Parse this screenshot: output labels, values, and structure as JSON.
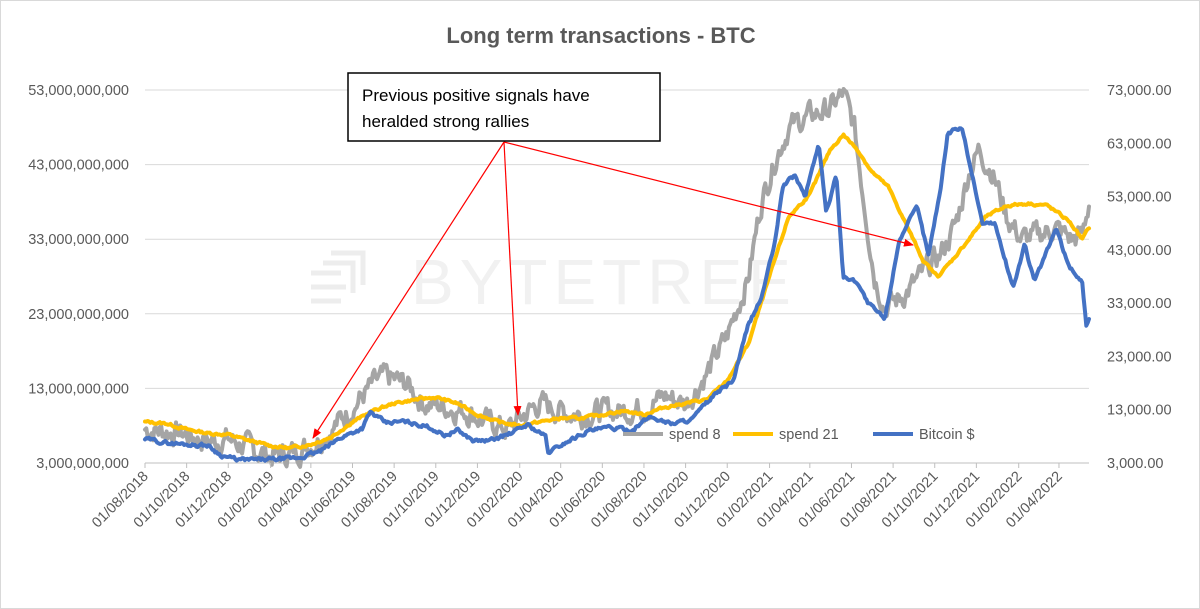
{
  "chart_data": {
    "type": "line",
    "title": "Long term transactions - BTC",
    "watermark": "BYTETREE",
    "annotation": "Previous positive signals have heralded strong rallies",
    "annotation_lines": [
      "Previous positive signals have",
      "heralded strong rallies"
    ],
    "x_tick_labels": [
      "01/08/2018",
      "01/10/2018",
      "01/12/2018",
      "01/02/2019",
      "01/04/2019",
      "01/06/2019",
      "01/08/2019",
      "01/10/2019",
      "01/12/2019",
      "01/02/2020",
      "01/04/2020",
      "01/06/2020",
      "01/08/2020",
      "01/10/2020",
      "01/12/2020",
      "01/02/2021",
      "01/04/2021",
      "01/06/2021",
      "01/08/2021",
      "01/10/2021",
      "01/12/2021",
      "01/02/2022",
      "01/04/2022"
    ],
    "x_range": [
      "2018-08-01",
      "2022-05-15"
    ],
    "y_left": {
      "ylim": [
        3000000000,
        53000000000
      ],
      "tick_labels": [
        "53,000,000,000",
        "43,000,000,000",
        "33,000,000,000",
        "23,000,000,000",
        "13,000,000,000",
        "3,000,000,000"
      ],
      "ticks": [
        53000000000,
        43000000000,
        33000000000,
        23000000000,
        13000000000,
        3000000000
      ]
    },
    "y_right": {
      "ylim": [
        3000,
        73000
      ],
      "tick_labels": [
        "73,000.00",
        "63,000.00",
        "53,000.00",
        "43,000.00",
        "33,000.00",
        "23,000.00",
        "13,000.00",
        "3,000.00"
      ],
      "ticks": [
        73000,
        63000,
        53000,
        43000,
        33000,
        23000,
        13000,
        3000
      ]
    },
    "grid": true,
    "legend_position": "lower-right inside plot",
    "series": [
      {
        "name": "spend 8",
        "axis": "left",
        "color": "#a5a5a5",
        "noise": 0.45,
        "points": [
          [
            "2018-08-01",
            7500000000.0
          ],
          [
            "2018-09-01",
            7300000000.0
          ],
          [
            "2018-10-01",
            6800000000.0
          ],
          [
            "2018-11-01",
            6000000000.0
          ],
          [
            "2018-12-01",
            6200000000.0
          ],
          [
            "2019-01-01",
            5000000000.0
          ],
          [
            "2019-02-01",
            4000000000.0
          ],
          [
            "2019-03-01",
            4200000000.0
          ],
          [
            "2019-04-01",
            5500000000.0
          ],
          [
            "2019-05-01",
            7500000000.0
          ],
          [
            "2019-06-01",
            10500000000.0
          ],
          [
            "2019-07-01",
            13500000000.0
          ],
          [
            "2019-07-20",
            14500000000.0
          ],
          [
            "2019-08-20",
            13500000000.0
          ],
          [
            "2019-09-15",
            11000000000.0
          ],
          [
            "2019-10-15",
            10500000000.0
          ],
          [
            "2019-11-15",
            10000000000.0
          ],
          [
            "2019-12-15",
            8500000000.0
          ],
          [
            "2020-01-15",
            7500000000.0
          ],
          [
            "2020-02-01",
            9000000000.0
          ],
          [
            "2020-03-01",
            11000000000.0
          ],
          [
            "2020-04-01",
            10000000000.0
          ],
          [
            "2020-05-01",
            9500000000.0
          ],
          [
            "2020-06-01",
            10000000000.0
          ],
          [
            "2020-07-01",
            10000000000.0
          ],
          [
            "2020-08-01",
            10500000000.0
          ],
          [
            "2020-09-01",
            12000000000.0
          ],
          [
            "2020-10-01",
            11000000000.0
          ],
          [
            "2020-11-01",
            15000000000.0
          ],
          [
            "2020-12-01",
            20000000000.0
          ],
          [
            "2021-01-01",
            28000000000.0
          ],
          [
            "2021-01-20",
            38000000000.0
          ],
          [
            "2021-02-10",
            44000000000.0
          ],
          [
            "2021-03-01",
            48000000000.0
          ],
          [
            "2021-04-01",
            49500000000.0
          ],
          [
            "2021-05-01",
            50500000000.0
          ],
          [
            "2021-05-20",
            52500000000.0
          ],
          [
            "2021-06-05",
            48000000000.0
          ],
          [
            "2021-06-20",
            38000000000.0
          ],
          [
            "2021-07-05",
            28000000000.0
          ],
          [
            "2021-07-20",
            24000000000.0
          ],
          [
            "2021-08-10",
            25000000000.0
          ],
          [
            "2021-09-01",
            27000000000.0
          ],
          [
            "2021-09-20",
            29000000000.0
          ],
          [
            "2021-10-10",
            31000000000.0
          ],
          [
            "2021-11-01",
            35000000000.0
          ],
          [
            "2021-11-20",
            42000000000.0
          ],
          [
            "2021-12-05",
            45000000000.0
          ],
          [
            "2021-12-25",
            42000000000.0
          ],
          [
            "2022-01-15",
            36000000000.0
          ],
          [
            "2022-02-05",
            33000000000.0
          ],
          [
            "2022-03-01",
            33500000000.0
          ],
          [
            "2022-03-25",
            34500000000.0
          ],
          [
            "2022-04-20",
            33000000000.0
          ],
          [
            "2022-05-05",
            33500000000.0
          ],
          [
            "2022-05-15",
            38000000000.0
          ]
        ]
      },
      {
        "name": "spend 21",
        "axis": "left",
        "color": "#ffc000",
        "noise": 0.05,
        "points": [
          [
            "2018-08-01",
            8500000000.0
          ],
          [
            "2018-09-01",
            8300000000.0
          ],
          [
            "2018-10-01",
            7500000000.0
          ],
          [
            "2018-11-01",
            7000000000.0
          ],
          [
            "2018-12-01",
            6800000000.0
          ],
          [
            "2019-01-01",
            6000000000.0
          ],
          [
            "2019-02-01",
            5300000000.0
          ],
          [
            "2019-03-01",
            5000000000.0
          ],
          [
            "2019-04-01",
            5500000000.0
          ],
          [
            "2019-05-01",
            6500000000.0
          ],
          [
            "2019-06-01",
            8500000000.0
          ],
          [
            "2019-07-01",
            10000000000.0
          ],
          [
            "2019-08-01",
            11000000000.0
          ],
          [
            "2019-09-01",
            11500000000.0
          ],
          [
            "2019-10-01",
            11800000000.0
          ],
          [
            "2019-11-01",
            11000000000.0
          ],
          [
            "2019-12-01",
            9500000000.0
          ],
          [
            "2020-01-01",
            8500000000.0
          ],
          [
            "2020-02-01",
            8000000000.0
          ],
          [
            "2020-03-01",
            8500000000.0
          ],
          [
            "2020-04-01",
            9000000000.0
          ],
          [
            "2020-05-01",
            9000000000.0
          ],
          [
            "2020-06-01",
            9500000000.0
          ],
          [
            "2020-07-01",
            10000000000.0
          ],
          [
            "2020-08-01",
            9500000000.0
          ],
          [
            "2020-09-01",
            10500000000.0
          ],
          [
            "2020-10-01",
            11000000000.0
          ],
          [
            "2020-11-01",
            11500000000.0
          ],
          [
            "2020-12-01",
            14000000000.0
          ],
          [
            "2021-01-01",
            19000000000.0
          ],
          [
            "2021-02-01",
            28000000000.0
          ],
          [
            "2021-03-01",
            36000000000.0
          ],
          [
            "2021-04-01",
            39000000000.0
          ],
          [
            "2021-05-01",
            45000000000.0
          ],
          [
            "2021-05-20",
            47000000000.0
          ],
          [
            "2021-06-10",
            45000000000.0
          ],
          [
            "2021-07-01",
            42000000000.0
          ],
          [
            "2021-07-25",
            40000000000.0
          ],
          [
            "2021-08-20",
            35000000000.0
          ],
          [
            "2021-09-15",
            30000000000.0
          ],
          [
            "2021-10-05",
            28000000000.0
          ],
          [
            "2021-10-25",
            30000000000.0
          ],
          [
            "2021-11-20",
            33000000000.0
          ],
          [
            "2021-12-15",
            36000000000.0
          ],
          [
            "2022-01-15",
            37500000000.0
          ],
          [
            "2022-02-15",
            37800000000.0
          ],
          [
            "2022-03-15",
            37500000000.0
          ],
          [
            "2022-04-15",
            35500000000.0
          ],
          [
            "2022-05-05",
            33000000000.0
          ],
          [
            "2022-05-15",
            34500000000.0
          ]
        ]
      },
      {
        "name": "Bitcoin $",
        "axis": "right",
        "color": "#4472c4",
        "noise": 0.07,
        "points": [
          [
            "2018-08-01",
            7500
          ],
          [
            "2018-09-01",
            6800
          ],
          [
            "2018-10-01",
            6500
          ],
          [
            "2018-11-01",
            6300
          ],
          [
            "2018-11-20",
            4500
          ],
          [
            "2018-12-15",
            3600
          ],
          [
            "2019-01-15",
            3600
          ],
          [
            "2019-02-15",
            3700
          ],
          [
            "2019-03-15",
            4000
          ],
          [
            "2019-04-15",
            5200
          ],
          [
            "2019-05-15",
            7800
          ],
          [
            "2019-06-15",
            9500
          ],
          [
            "2019-06-27",
            12500
          ],
          [
            "2019-07-20",
            10500
          ],
          [
            "2019-08-15",
            10800
          ],
          [
            "2019-09-20",
            9800
          ],
          [
            "2019-10-15",
            8200
          ],
          [
            "2019-11-01",
            9200
          ],
          [
            "2019-11-25",
            7200
          ],
          [
            "2019-12-20",
            7200
          ],
          [
            "2020-01-20",
            8600
          ],
          [
            "2020-02-12",
            10200
          ],
          [
            "2020-03-10",
            8000
          ],
          [
            "2020-03-13",
            4900
          ],
          [
            "2020-04-10",
            7000
          ],
          [
            "2020-05-10",
            9000
          ],
          [
            "2020-06-10",
            9600
          ],
          [
            "2020-07-15",
            9200
          ],
          [
            "2020-08-10",
            11700
          ],
          [
            "2020-09-10",
            10400
          ],
          [
            "2020-10-10",
            11200
          ],
          [
            "2020-11-10",
            15500
          ],
          [
            "2020-12-10",
            18500
          ],
          [
            "2021-01-01",
            29000
          ],
          [
            "2021-01-20",
            34000
          ],
          [
            "2021-02-10",
            45000
          ],
          [
            "2021-02-20",
            55000
          ],
          [
            "2021-03-10",
            57000
          ],
          [
            "2021-03-25",
            53000
          ],
          [
            "2021-04-14",
            63000
          ],
          [
            "2021-04-25",
            50000
          ],
          [
            "2021-05-10",
            57000
          ],
          [
            "2021-05-20",
            38000
          ],
          [
            "2021-06-10",
            37000
          ],
          [
            "2021-06-25",
            33000
          ],
          [
            "2021-07-20",
            30000
          ],
          [
            "2021-08-10",
            45000
          ],
          [
            "2021-09-05",
            51000
          ],
          [
            "2021-09-22",
            42000
          ],
          [
            "2021-10-10",
            55000
          ],
          [
            "2021-10-20",
            65000
          ],
          [
            "2021-11-10",
            66000
          ],
          [
            "2021-11-25",
            57000
          ],
          [
            "2021-12-10",
            48000
          ],
          [
            "2021-12-28",
            48000
          ],
          [
            "2022-01-10",
            42000
          ],
          [
            "2022-01-24",
            36000
          ],
          [
            "2022-02-10",
            44000
          ],
          [
            "2022-02-24",
            37000
          ],
          [
            "2022-03-28",
            47000
          ],
          [
            "2022-04-15",
            40000
          ],
          [
            "2022-05-05",
            37000
          ],
          [
            "2022-05-11",
            29000
          ],
          [
            "2022-05-15",
            30000
          ]
        ]
      }
    ]
  }
}
